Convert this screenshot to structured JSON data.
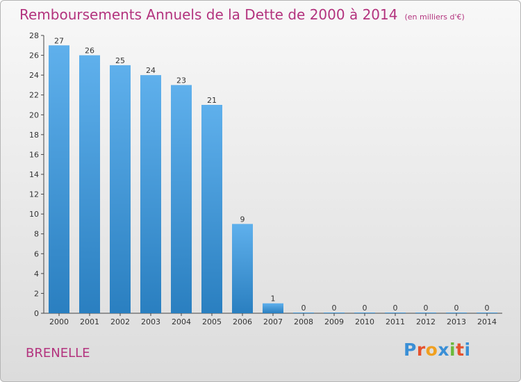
{
  "title": "Remboursements Annuels de la Dette de 2000 à 2014",
  "unit": "(en milliers d'€)",
  "commune": "BRENELLE",
  "logo": {
    "letters": [
      "P",
      "r",
      "o",
      "x",
      "i",
      "t",
      "i"
    ],
    "colors": [
      "#3a8fd6",
      "#e5522e",
      "#f0a020",
      "#3a8fd6",
      "#6bb83a",
      "#e5522e",
      "#3a8fd6"
    ]
  },
  "colors": {
    "bar_light": "#5fb0ec",
    "bar_dark": "#2a7fc0",
    "title": "#b3337e"
  },
  "chart_data": {
    "type": "bar",
    "categories": [
      "2000",
      "2001",
      "2002",
      "2003",
      "2004",
      "2005",
      "2006",
      "2007",
      "2008",
      "2009",
      "2010",
      "2011",
      "2012",
      "2013",
      "2014"
    ],
    "values": [
      27,
      26,
      25,
      24,
      23,
      21,
      9,
      1,
      0,
      0,
      0,
      0,
      0,
      0,
      0
    ],
    "ylim": [
      0,
      28
    ],
    "yticks": [
      0,
      2,
      4,
      6,
      8,
      10,
      12,
      14,
      16,
      18,
      20,
      22,
      24,
      26,
      28
    ],
    "grid": false
  }
}
